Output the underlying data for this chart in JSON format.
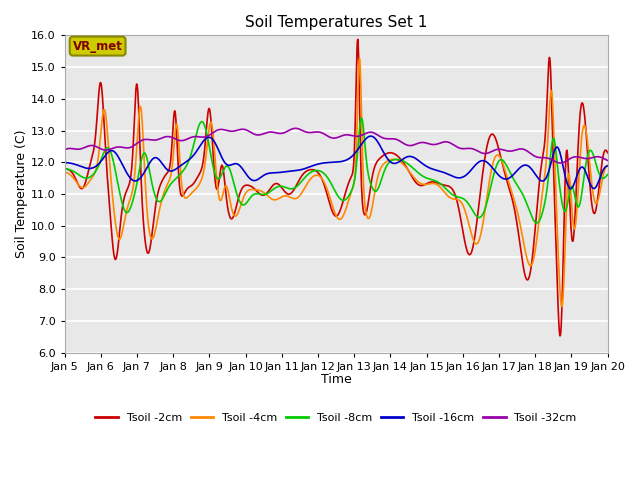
{
  "title": "Soil Temperatures Set 1",
  "xlabel": "Time",
  "ylabel": "Soil Temperature (C)",
  "ylim": [
    6.0,
    16.0
  ],
  "yticks": [
    6.0,
    7.0,
    8.0,
    9.0,
    10.0,
    11.0,
    12.0,
    13.0,
    14.0,
    15.0,
    16.0
  ],
  "background_color": "#ffffff",
  "plot_bg_color": "#e8e8e8",
  "grid_color": "#ffffff",
  "legend_entries": [
    "Tsoil -2cm",
    "Tsoil -4cm",
    "Tsoil -8cm",
    "Tsoil -16cm",
    "Tsoil -32cm"
  ],
  "line_colors": [
    "#cc0000",
    "#ff8800",
    "#00cc00",
    "#0000cc",
    "#9900aa"
  ],
  "line_width": 1.2,
  "annotation_text": "VR_met",
  "annotation_box_color": "#cccc00",
  "annotation_text_color": "#800000",
  "x_tick_labels": [
    "Jan 5",
    "Jan 6",
    "Jan 7",
    "Jan 8",
    "Jan 9",
    "Jan 10",
    "Jan 11",
    "Jan 12",
    "Jan 13",
    "Jan 14",
    "Jan 15",
    "Jan 16",
    "Jan 17",
    "Jan 18",
    "Jan 19",
    "Jan 20"
  ],
  "n_points": 1440
}
